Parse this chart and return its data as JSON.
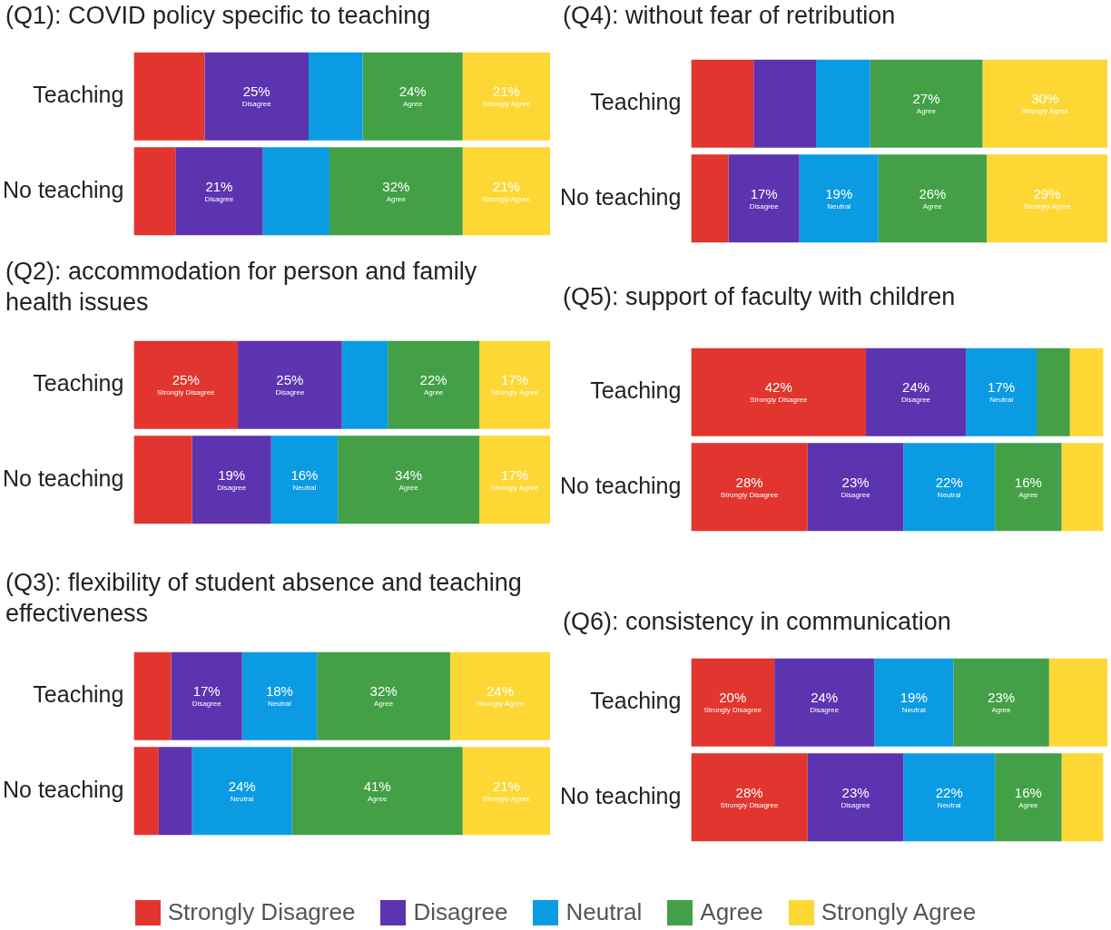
{
  "chart_data": [
    {
      "type": "bar",
      "title": "(Q1): COVID policy specific to teaching",
      "orientation": "horizontal",
      "stacked": true,
      "tick_labels": "y",
      "legend": "bottom",
      "categories": [
        "Teaching",
        "No teaching"
      ],
      "series": [
        {
          "name": "Strongly Disagree",
          "color": "#e2352f",
          "values": [
            17,
            10
          ],
          "value_labels": [
            null,
            null
          ]
        },
        {
          "name": "Disagree",
          "color": "#5c34b0",
          "values": [
            25,
            21
          ],
          "value_labels": [
            "25%",
            "21%"
          ]
        },
        {
          "name": "Neutral",
          "color": "#0b9be3",
          "values": [
            13,
            16
          ],
          "value_labels": [
            null,
            null
          ]
        },
        {
          "name": "Agree",
          "color": "#43a047",
          "values": [
            24,
            32
          ],
          "value_labels": [
            "24%",
            "32%"
          ]
        },
        {
          "name": "Strongly Agree",
          "color": "#fdd835",
          "values": [
            21,
            21
          ],
          "value_labels": [
            "21%",
            "21%"
          ]
        }
      ]
    },
    {
      "type": "bar",
      "title": "(Q2): accommodation for person and family health issues",
      "orientation": "horizontal",
      "stacked": true,
      "tick_labels": "y",
      "legend": "bottom",
      "categories": [
        "Teaching",
        "No teaching"
      ],
      "series": [
        {
          "name": "Strongly Disagree",
          "color": "#e2352f",
          "values": [
            25,
            14
          ],
          "value_labels": [
            "25%",
            null
          ]
        },
        {
          "name": "Disagree",
          "color": "#5c34b0",
          "values": [
            25,
            19
          ],
          "value_labels": [
            "25%",
            "19%"
          ]
        },
        {
          "name": "Neutral",
          "color": "#0b9be3",
          "values": [
            11,
            16
          ],
          "value_labels": [
            null,
            "16%"
          ]
        },
        {
          "name": "Agree",
          "color": "#43a047",
          "values": [
            22,
            34
          ],
          "value_labels": [
            "22%",
            "34%"
          ]
        },
        {
          "name": "Strongly Agree",
          "color": "#fdd835",
          "values": [
            17,
            17
          ],
          "value_labels": [
            "17%",
            "17%"
          ]
        }
      ]
    },
    {
      "type": "bar",
      "title": "(Q3): flexibility of student absence and teaching effectiveness",
      "orientation": "horizontal",
      "stacked": true,
      "tick_labels": "y",
      "legend": "bottom",
      "categories": [
        "Teaching",
        "No teaching"
      ],
      "series": [
        {
          "name": "Strongly Disagree",
          "color": "#e2352f",
          "values": [
            9,
            6
          ],
          "value_labels": [
            null,
            null
          ]
        },
        {
          "name": "Disagree",
          "color": "#5c34b0",
          "values": [
            17,
            8
          ],
          "value_labels": [
            "17%",
            null
          ]
        },
        {
          "name": "Neutral",
          "color": "#0b9be3",
          "values": [
            18,
            24
          ],
          "value_labels": [
            "18%",
            "24%"
          ]
        },
        {
          "name": "Agree",
          "color": "#43a047",
          "values": [
            32,
            41
          ],
          "value_labels": [
            "32%",
            "41%"
          ]
        },
        {
          "name": "Strongly Agree",
          "color": "#fdd835",
          "values": [
            24,
            21
          ],
          "value_labels": [
            "24%",
            "21%"
          ]
        }
      ]
    },
    {
      "type": "bar",
      "title": "(Q4): without fear of retribution",
      "orientation": "horizontal",
      "stacked": true,
      "tick_labels": "y",
      "legend": "bottom",
      "categories": [
        "Teaching",
        "No teaching"
      ],
      "series": [
        {
          "name": "Strongly Disagree",
          "color": "#e2352f",
          "values": [
            15,
            9
          ],
          "value_labels": [
            null,
            null
          ]
        },
        {
          "name": "Disagree",
          "color": "#5c34b0",
          "values": [
            15,
            17
          ],
          "value_labels": [
            null,
            "17%"
          ]
        },
        {
          "name": "Neutral",
          "color": "#0b9be3",
          "values": [
            13,
            19
          ],
          "value_labels": [
            null,
            "19%"
          ]
        },
        {
          "name": "Agree",
          "color": "#43a047",
          "values": [
            27,
            26
          ],
          "value_labels": [
            "27%",
            "26%"
          ]
        },
        {
          "name": "Strongly Agree",
          "color": "#fdd835",
          "values": [
            30,
            29
          ],
          "value_labels": [
            "30%",
            "29%"
          ]
        }
      ]
    },
    {
      "type": "bar",
      "title": "(Q5): support of faculty with children",
      "orientation": "horizontal",
      "stacked": true,
      "tick_labels": "y",
      "legend": "bottom",
      "categories": [
        "Teaching",
        "No teaching"
      ],
      "series": [
        {
          "name": "Strongly Disagree",
          "color": "#e2352f",
          "values": [
            42,
            28
          ],
          "value_labels": [
            "42%",
            "28%"
          ]
        },
        {
          "name": "Disagree",
          "color": "#5c34b0",
          "values": [
            24,
            23
          ],
          "value_labels": [
            "24%",
            "23%"
          ]
        },
        {
          "name": "Neutral",
          "color": "#0b9be3",
          "values": [
            17,
            22
          ],
          "value_labels": [
            "17%",
            "22%"
          ]
        },
        {
          "name": "Agree",
          "color": "#43a047",
          "values": [
            8,
            16
          ],
          "value_labels": [
            null,
            "16%"
          ]
        },
        {
          "name": "Strongly Agree",
          "color": "#fdd835",
          "values": [
            8,
            10
          ],
          "value_labels": [
            null,
            null
          ]
        }
      ]
    },
    {
      "type": "bar",
      "title": "(Q6): consistency in communication",
      "orientation": "horizontal",
      "stacked": true,
      "tick_labels": "y",
      "legend": "bottom",
      "categories": [
        "Teaching",
        "No teaching"
      ],
      "series": [
        {
          "name": "Strongly Disagree",
          "color": "#e2352f",
          "values": [
            20,
            28
          ],
          "value_labels": [
            "20%",
            "28%"
          ]
        },
        {
          "name": "Disagree",
          "color": "#5c34b0",
          "values": [
            24,
            23
          ],
          "value_labels": [
            "24%",
            "23%"
          ]
        },
        {
          "name": "Neutral",
          "color": "#0b9be3",
          "values": [
            19,
            22
          ],
          "value_labels": [
            "19%",
            "22%"
          ]
        },
        {
          "name": "Agree",
          "color": "#43a047",
          "values": [
            23,
            16
          ],
          "value_labels": [
            "23%",
            "16%"
          ]
        },
        {
          "name": "Strongly Agree",
          "color": "#fdd835",
          "values": [
            14,
            10
          ],
          "value_labels": [
            null,
            null
          ]
        }
      ]
    }
  ]
}
